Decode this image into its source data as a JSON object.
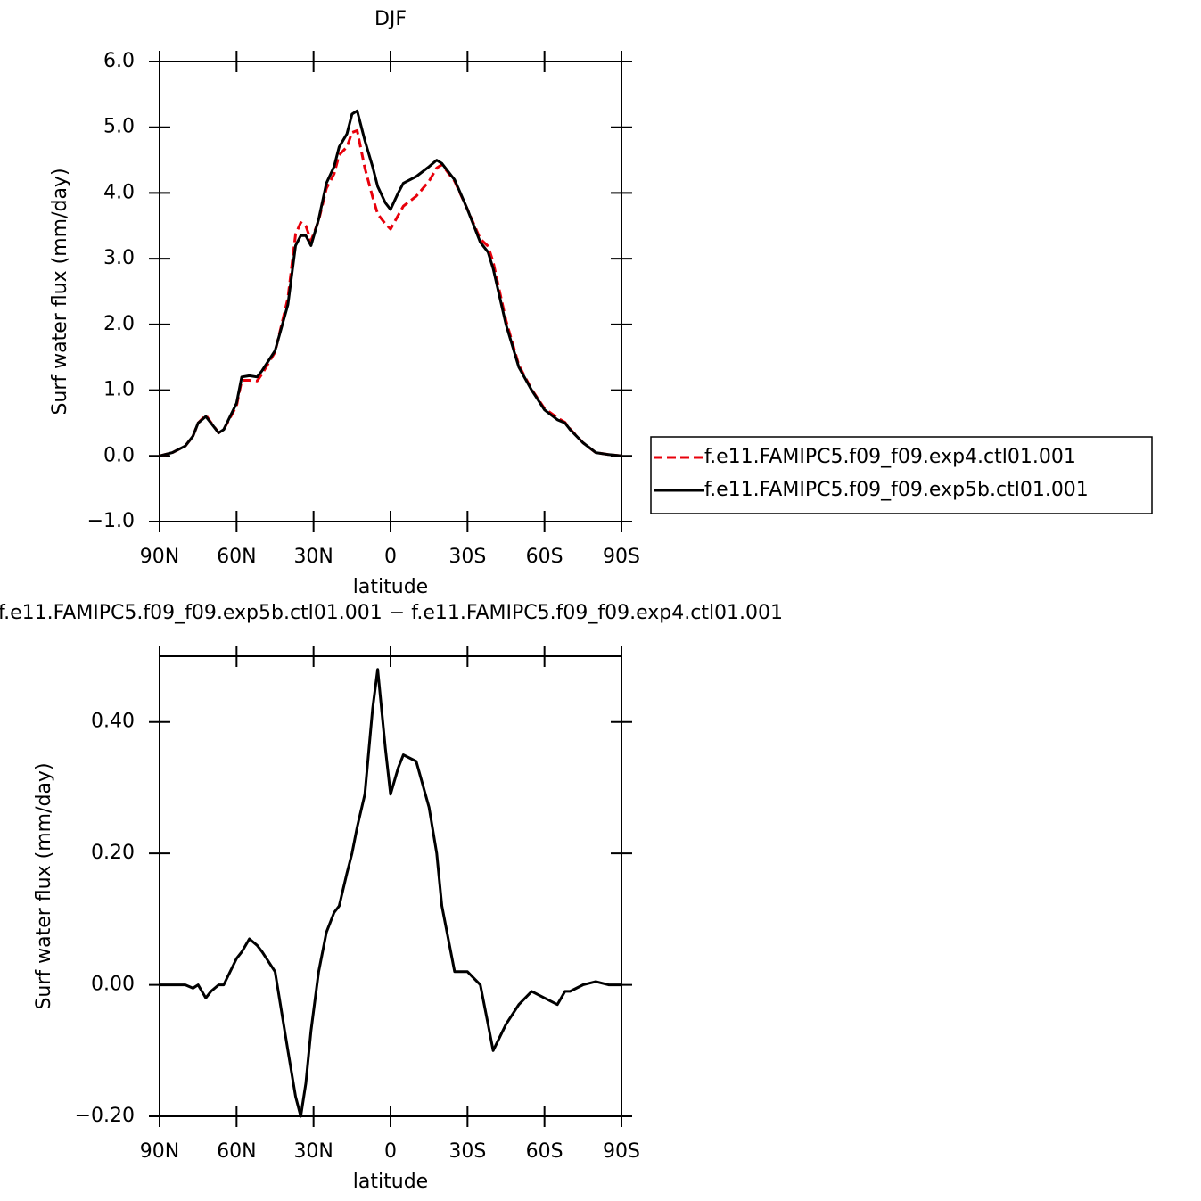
{
  "chart_data": [
    {
      "type": "line",
      "title": "DJF",
      "xlabel": "latitude",
      "ylabel": "Surf water flux (mm/day)",
      "x": [
        90,
        85,
        80,
        77,
        75,
        72,
        70,
        67,
        65,
        60,
        58,
        55,
        52,
        50,
        45,
        40,
        37,
        35,
        33,
        31,
        28,
        25,
        22,
        20,
        17,
        15,
        13,
        10,
        7,
        5,
        2,
        0,
        -3,
        -5,
        -10,
        -15,
        -18,
        -20,
        -25,
        -30,
        -35,
        -38,
        -40,
        -45,
        -50,
        -55,
        -60,
        -65,
        -68,
        -70,
        -75,
        -80,
        -85,
        -90
      ],
      "series": [
        {
          "name": "f.e11.FAMIPC5.f09_f09.exp4.ctl01.001",
          "color": "#e8000b",
          "line_style": "dashed",
          "values": [
            0,
            0.05,
            0.15,
            0.3,
            0.5,
            0.62,
            0.51,
            0.35,
            0.4,
            0.76,
            1.15,
            1.15,
            1.14,
            1.25,
            1.58,
            2.4,
            3.37,
            3.55,
            3.5,
            3.27,
            3.58,
            4.07,
            4.29,
            4.58,
            4.7,
            4.92,
            4.95,
            4.38,
            3.94,
            3.68,
            3.53,
            3.45,
            3.66,
            3.8,
            3.95,
            4.18,
            4.38,
            4.43,
            4.18,
            3.75,
            3.3,
            3.19,
            2.95,
            2.06,
            1.38,
            1.01,
            0.72,
            0.58,
            0.51,
            0.41,
            0.2,
            0.05,
            0.02,
            0
          ]
        },
        {
          "name": "f.e11.FAMIPC5.f09_f09.exp5b.ctl01.001",
          "color": "#000000",
          "line_style": "solid",
          "values": [
            0,
            0.05,
            0.15,
            0.3,
            0.5,
            0.6,
            0.5,
            0.35,
            0.4,
            0.8,
            1.2,
            1.22,
            1.2,
            1.3,
            1.6,
            2.3,
            3.2,
            3.35,
            3.35,
            3.2,
            3.6,
            4.15,
            4.4,
            4.7,
            4.9,
            5.2,
            5.25,
            4.8,
            4.4,
            4.1,
            3.85,
            3.75,
            4.0,
            4.15,
            4.25,
            4.4,
            4.5,
            4.45,
            4.2,
            3.75,
            3.25,
            3.1,
            2.85,
            2.0,
            1.35,
            1.0,
            0.7,
            0.55,
            0.5,
            0.4,
            0.2,
            0.05,
            0.02,
            0
          ]
        }
      ],
      "xlim": [
        90,
        -90
      ],
      "xticks": [
        {
          "value": 90,
          "label": "90N"
        },
        {
          "value": 60,
          "label": "60N"
        },
        {
          "value": 30,
          "label": "30N"
        },
        0,
        {
          "value": -30,
          "label": "30S"
        },
        {
          "value": -60,
          "label": "60S"
        },
        {
          "value": -90,
          "label": "90S"
        }
      ],
      "ylim": [
        -1,
        6
      ],
      "yticks": [
        {
          "value": -1,
          "label": "−1.0"
        },
        {
          "value": 0,
          "label": "0.0"
        },
        {
          "value": 1,
          "label": "1.0"
        },
        {
          "value": 2,
          "label": "2.0"
        },
        {
          "value": 3,
          "label": "3.0"
        },
        {
          "value": 4,
          "label": "4.0"
        },
        {
          "value": 5,
          "label": "5.0"
        },
        {
          "value": 6,
          "label": "6.0"
        }
      ],
      "legend": "right"
    },
    {
      "type": "line",
      "title": "f.e11.FAMIPC5.f09_f09.exp5b.ctl01.001 − f.e11.FAMIPC5.f09_f09.exp4.ctl01.001",
      "xlabel": "latitude",
      "ylabel": "Surf water flux (mm/day)",
      "x": [
        90,
        85,
        80,
        77,
        75,
        72,
        70,
        67,
        65,
        60,
        58,
        55,
        52,
        50,
        45,
        40,
        37,
        35,
        33,
        31,
        28,
        25,
        22,
        20,
        17,
        15,
        13,
        10,
        7,
        5,
        2,
        0,
        -3,
        -5,
        -10,
        -15,
        -18,
        -20,
        -25,
        -30,
        -35,
        -38,
        -40,
        -45,
        -50,
        -55,
        -60,
        -65,
        -68,
        -70,
        -75,
        -80,
        -85,
        -90
      ],
      "values": [
        0,
        0,
        0,
        -0.005,
        0,
        -0.02,
        -0.01,
        0,
        0,
        0.04,
        0.05,
        0.07,
        0.06,
        0.05,
        0.02,
        -0.1,
        -0.17,
        -0.2,
        -0.15,
        -0.07,
        0.02,
        0.08,
        0.11,
        0.12,
        0.17,
        0.2,
        0.24,
        0.29,
        0.42,
        0.48,
        0.36,
        0.29,
        0.33,
        0.35,
        0.34,
        0.27,
        0.2,
        0.12,
        0.02,
        0.02,
        0.0,
        -0.06,
        -0.1,
        -0.06,
        -0.03,
        -0.01,
        -0.02,
        -0.03,
        -0.01,
        -0.01,
        0,
        0.005,
        0,
        0
      ],
      "color": "#000000",
      "xlim": [
        90,
        -90
      ],
      "xticks": [
        {
          "value": 90,
          "label": "90N"
        },
        {
          "value": 60,
          "label": "60N"
        },
        {
          "value": 30,
          "label": "30N"
        },
        0,
        {
          "value": -30,
          "label": "30S"
        },
        {
          "value": -60,
          "label": "60S"
        },
        {
          "value": -90,
          "label": "90S"
        }
      ],
      "ylim": [
        -0.2,
        0.5
      ],
      "yticks": [
        {
          "value": -0.2,
          "label": "−0.20"
        },
        {
          "value": 0,
          "label": "0.00"
        },
        {
          "value": 0.2,
          "label": "0.20"
        },
        {
          "value": 0.4,
          "label": "0.40"
        }
      ]
    }
  ]
}
